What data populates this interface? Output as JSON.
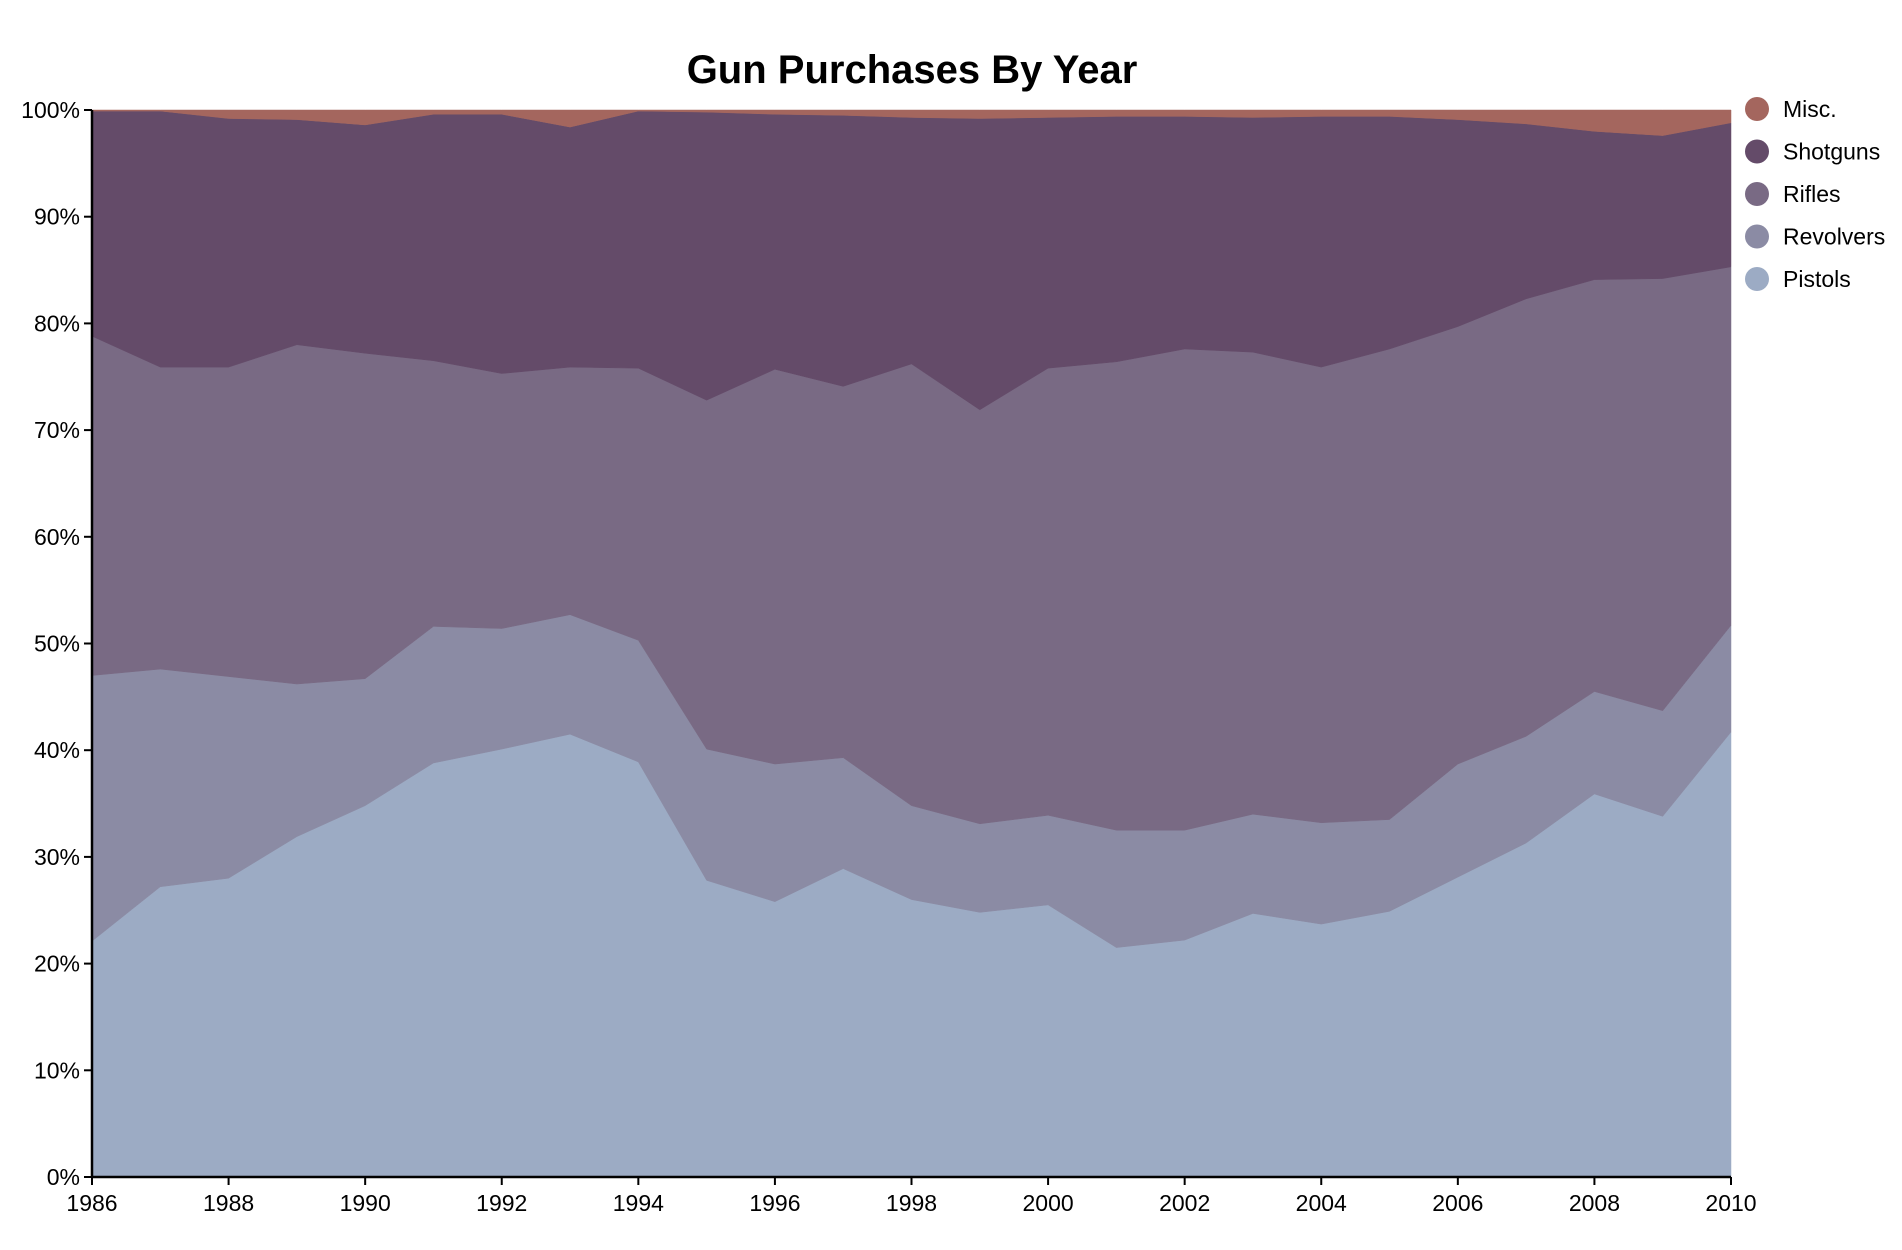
{
  "chart_data": {
    "type": "area",
    "stacked": true,
    "normalized": true,
    "title": "Gun Purchases By Year",
    "xlabel": "",
    "ylabel": "",
    "x": [
      1986,
      1987,
      1988,
      1989,
      1990,
      1991,
      1992,
      1993,
      1994,
      1995,
      1996,
      1997,
      1998,
      1999,
      2000,
      2001,
      2002,
      2003,
      2004,
      2005,
      2006,
      2007,
      2008,
      2009,
      2010
    ],
    "x_ticks": [
      "1986",
      "1988",
      "1990",
      "1992",
      "1994",
      "1996",
      "1998",
      "2000",
      "2002",
      "2004",
      "2006",
      "2008",
      "2010"
    ],
    "x_tick_values": [
      1986,
      1988,
      1990,
      1992,
      1994,
      1996,
      1998,
      2000,
      2002,
      2004,
      2006,
      2008,
      2010
    ],
    "ylim": [
      0,
      1
    ],
    "y_ticks": [
      "0%",
      "10%",
      "20%",
      "30%",
      "40%",
      "50%",
      "60%",
      "70%",
      "80%",
      "90%",
      "100%"
    ],
    "y_tick_values": [
      0,
      0.1,
      0.2,
      0.3,
      0.4,
      0.5,
      0.6,
      0.7,
      0.8,
      0.9,
      1.0
    ],
    "grid": false,
    "legend_position": "right",
    "series": [
      {
        "name": "Pistols",
        "color": "#9cabc4",
        "values": [
          0.221,
          0.272,
          0.28,
          0.319,
          0.348,
          0.388,
          0.401,
          0.415,
          0.389,
          0.278,
          0.258,
          0.289,
          0.26,
          0.248,
          0.255,
          0.215,
          0.222,
          0.247,
          0.237,
          0.249,
          0.281,
          0.313,
          0.359,
          0.338,
          0.417
        ]
      },
      {
        "name": "Revolvers",
        "color": "#8b8ba4",
        "values": [
          0.249,
          0.204,
          0.189,
          0.143,
          0.119,
          0.128,
          0.113,
          0.112,
          0.114,
          0.123,
          0.129,
          0.104,
          0.088,
          0.083,
          0.084,
          0.11,
          0.103,
          0.093,
          0.095,
          0.086,
          0.106,
          0.1,
          0.096,
          0.099,
          0.1
        ]
      },
      {
        "name": "Rifles",
        "color": "#796a84",
        "values": [
          0.318,
          0.283,
          0.29,
          0.318,
          0.305,
          0.249,
          0.239,
          0.232,
          0.255,
          0.327,
          0.37,
          0.348,
          0.414,
          0.388,
          0.419,
          0.439,
          0.451,
          0.433,
          0.427,
          0.441,
          0.41,
          0.41,
          0.386,
          0.405,
          0.336
        ]
      },
      {
        "name": "Shotguns",
        "color": "#644b69",
        "values": [
          0.211,
          0.24,
          0.233,
          0.211,
          0.214,
          0.231,
          0.243,
          0.225,
          0.241,
          0.27,
          0.239,
          0.254,
          0.231,
          0.273,
          0.235,
          0.23,
          0.218,
          0.22,
          0.235,
          0.218,
          0.194,
          0.164,
          0.139,
          0.134,
          0.135
        ]
      },
      {
        "name": "Misc.",
        "color": "#a4665e",
        "values": [
          0.001,
          0.001,
          0.008,
          0.009,
          0.014,
          0.004,
          0.004,
          0.016,
          0.001,
          0.002,
          0.004,
          0.005,
          0.007,
          0.008,
          0.007,
          0.006,
          0.006,
          0.007,
          0.006,
          0.006,
          0.009,
          0.013,
          0.02,
          0.024,
          0.012
        ]
      }
    ],
    "legend_order": [
      "Misc.",
      "Shotguns",
      "Rifles",
      "Revolvers",
      "Pistols"
    ]
  }
}
